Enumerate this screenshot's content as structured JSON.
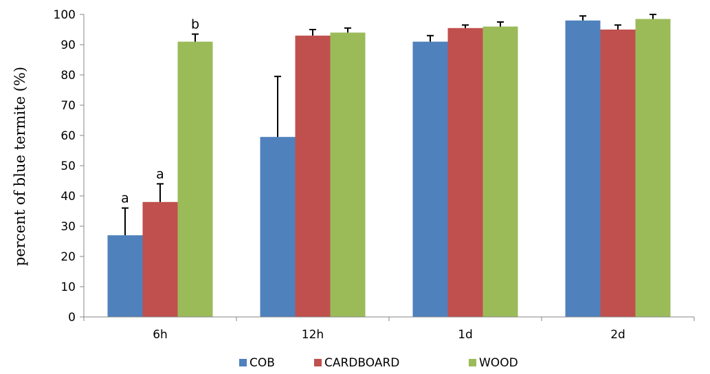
{
  "chart_data": {
    "type": "bar",
    "title": "",
    "xlabel": "",
    "ylabel": "percent of blue termite (%)",
    "ylim": [
      0,
      100
    ],
    "yticks": [
      0,
      10,
      20,
      30,
      40,
      50,
      60,
      70,
      80,
      90,
      100
    ],
    "categories": [
      "6h",
      "12h",
      "1d",
      "2d"
    ],
    "series": [
      {
        "name": "COB",
        "color": "#4f81bd",
        "values": [
          27,
          59.5,
          91,
          98
        ],
        "errors": [
          9,
          20,
          2,
          1.5
        ]
      },
      {
        "name": "CARDBOARD",
        "color": "#c0504d",
        "values": [
          38,
          93,
          95.5,
          95
        ],
        "errors": [
          6,
          2,
          1,
          1.5
        ]
      },
      {
        "name": "WOOD",
        "color": "#9bbb59",
        "values": [
          91,
          94,
          96,
          98.5
        ],
        "errors": [
          2.5,
          1.5,
          1.5,
          1.5
        ]
      }
    ],
    "annotations": [
      {
        "category": "6h",
        "series": "COB",
        "text": "a"
      },
      {
        "category": "6h",
        "series": "CARDBOARD",
        "text": "a"
      },
      {
        "category": "6h",
        "series": "WOOD",
        "text": "b"
      }
    ],
    "legend_position": "bottom",
    "grid": false
  }
}
